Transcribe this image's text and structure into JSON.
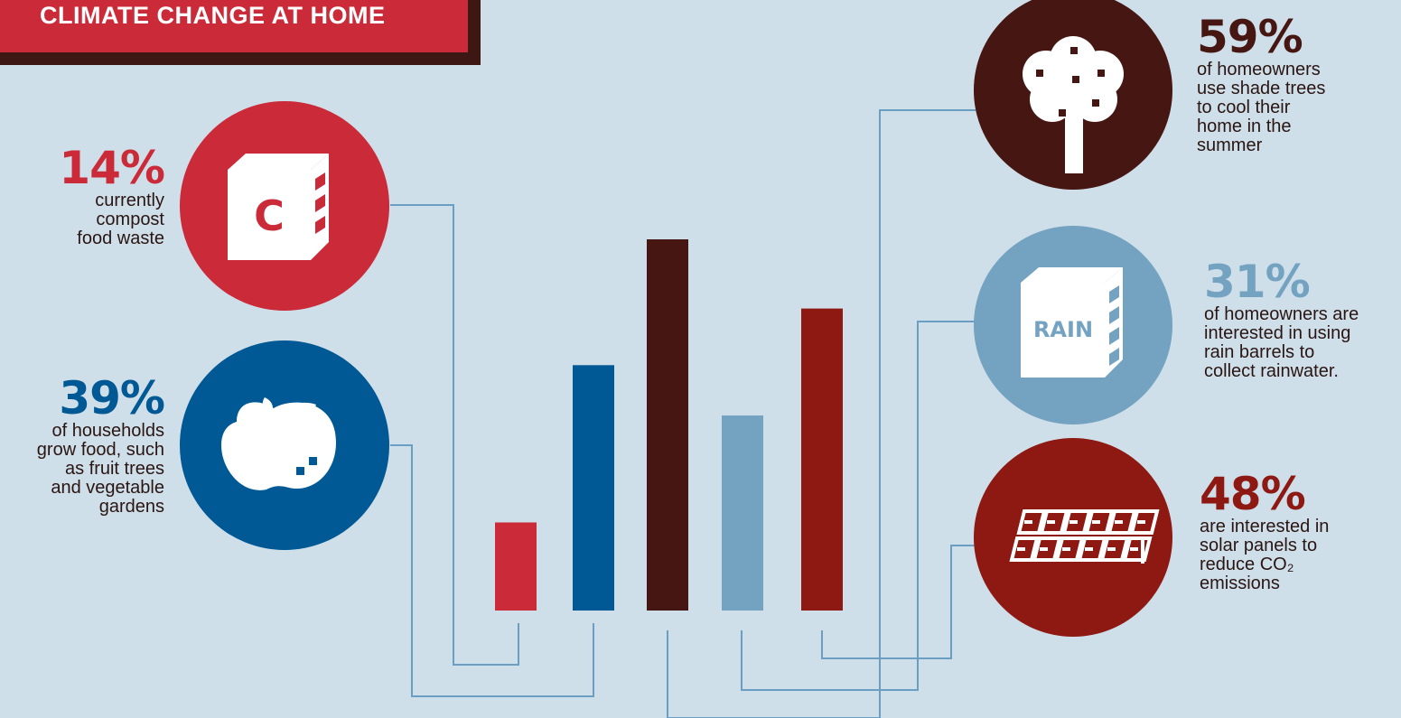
{
  "header": {
    "title": "CLIMATE CHANGE AT HOME"
  },
  "colors": {
    "background": "#cfdfe9",
    "red": "#cb2a39",
    "blue": "#005894",
    "dark_brown": "#461613",
    "light_blue": "#74a2c1",
    "dark_red": "#8e1812",
    "connector": "#6b9ec3"
  },
  "stats": {
    "compost": {
      "pct": "14%",
      "lines": [
        "currently",
        "compost",
        "food waste"
      ],
      "icon": "compost-bin-icon"
    },
    "grow_food": {
      "pct": "39%",
      "lines": [
        "of households",
        "grow food, such",
        "as fruit trees",
        "and vegetable",
        "gardens"
      ],
      "icon": "apple-icon"
    },
    "shade_trees": {
      "pct": "59%",
      "lines": [
        "of homeowners",
        "use shade trees",
        "to cool their",
        "home in the",
        "summer"
      ],
      "icon": "tree-icon"
    },
    "rain_barrels": {
      "pct": "31%",
      "lines": [
        "of homeowners are",
        "interested in using",
        "rain barrels to",
        "collect rainwater."
      ],
      "icon": "rain-barrel-icon",
      "icon_label": "RAIN"
    },
    "solar": {
      "pct": "48%",
      "lines": [
        "are interested in",
        "solar panels to",
        "reduce CO₂",
        "emissions"
      ],
      "icon": "solar-panel-icon"
    }
  },
  "compost_letter": "C",
  "chart_data": {
    "type": "bar",
    "categories": [
      "compost food waste",
      "grow food",
      "shade trees",
      "rain barrels",
      "solar panels"
    ],
    "values": [
      14,
      39,
      59,
      31,
      48
    ],
    "ylim": [
      0,
      100
    ],
    "grid": false
  }
}
